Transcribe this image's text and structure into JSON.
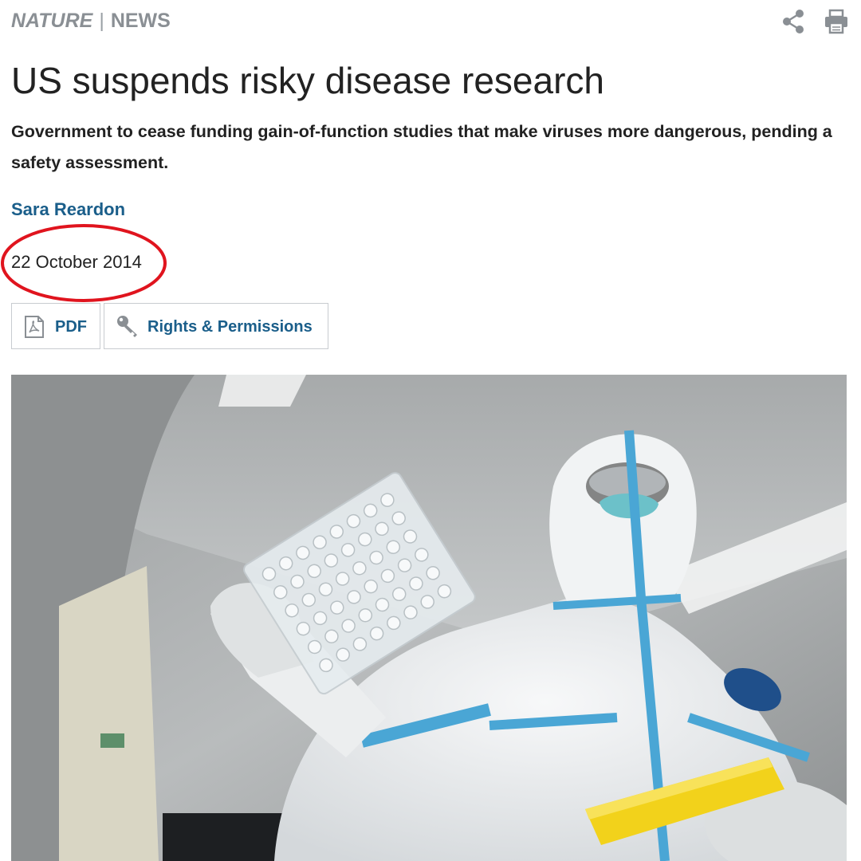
{
  "header": {
    "brand_primary": "NATURE",
    "brand_separator": "|",
    "brand_section": "NEWS",
    "icons": [
      "share-icon",
      "print-icon"
    ]
  },
  "article": {
    "title": "US suspends risky disease research",
    "standfirst": "Government to cease funding gain-of-function studies that make viruses more dangerous, pending a safety assessment.",
    "author": "Sara Reardon",
    "date": "22 October 2014"
  },
  "actions": {
    "pdf_label": "PDF",
    "pdf_icon": "pdf-document-icon",
    "rights_label": "Rights & Permissions",
    "rights_icon": "key-icon"
  },
  "colors": {
    "brand_gray": "#8a8f94",
    "link_blue": "#1a5e8a",
    "text": "#222222",
    "annotation_red": "#e0141e",
    "button_border": "#c8ccd0"
  }
}
